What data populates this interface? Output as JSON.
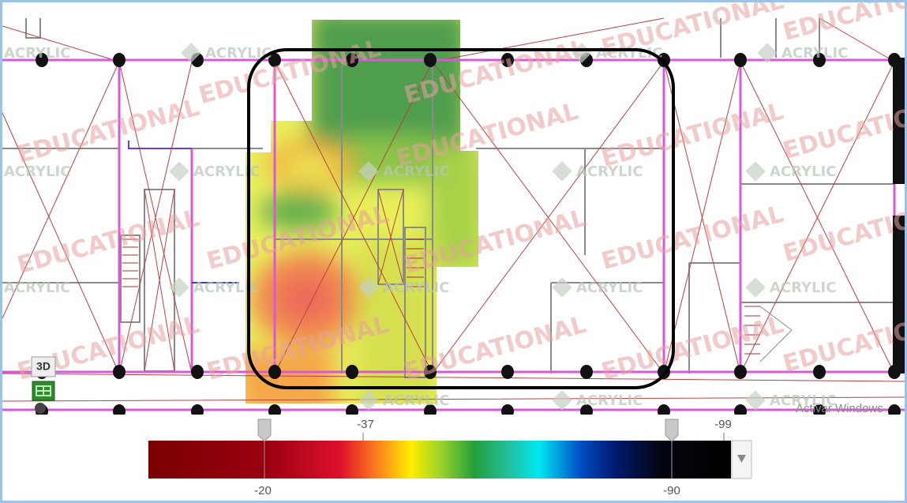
{
  "watermarks": {
    "educational": "EDUCATIONAL",
    "acrylic": "ACRYLIC"
  },
  "toolbar": {
    "view_3d": "3D"
  },
  "os_notice": "Activar Windows",
  "color_scale": {
    "upper_labels": [
      -37,
      -99
    ],
    "lower_labels": [
      -20,
      -90
    ]
  }
}
